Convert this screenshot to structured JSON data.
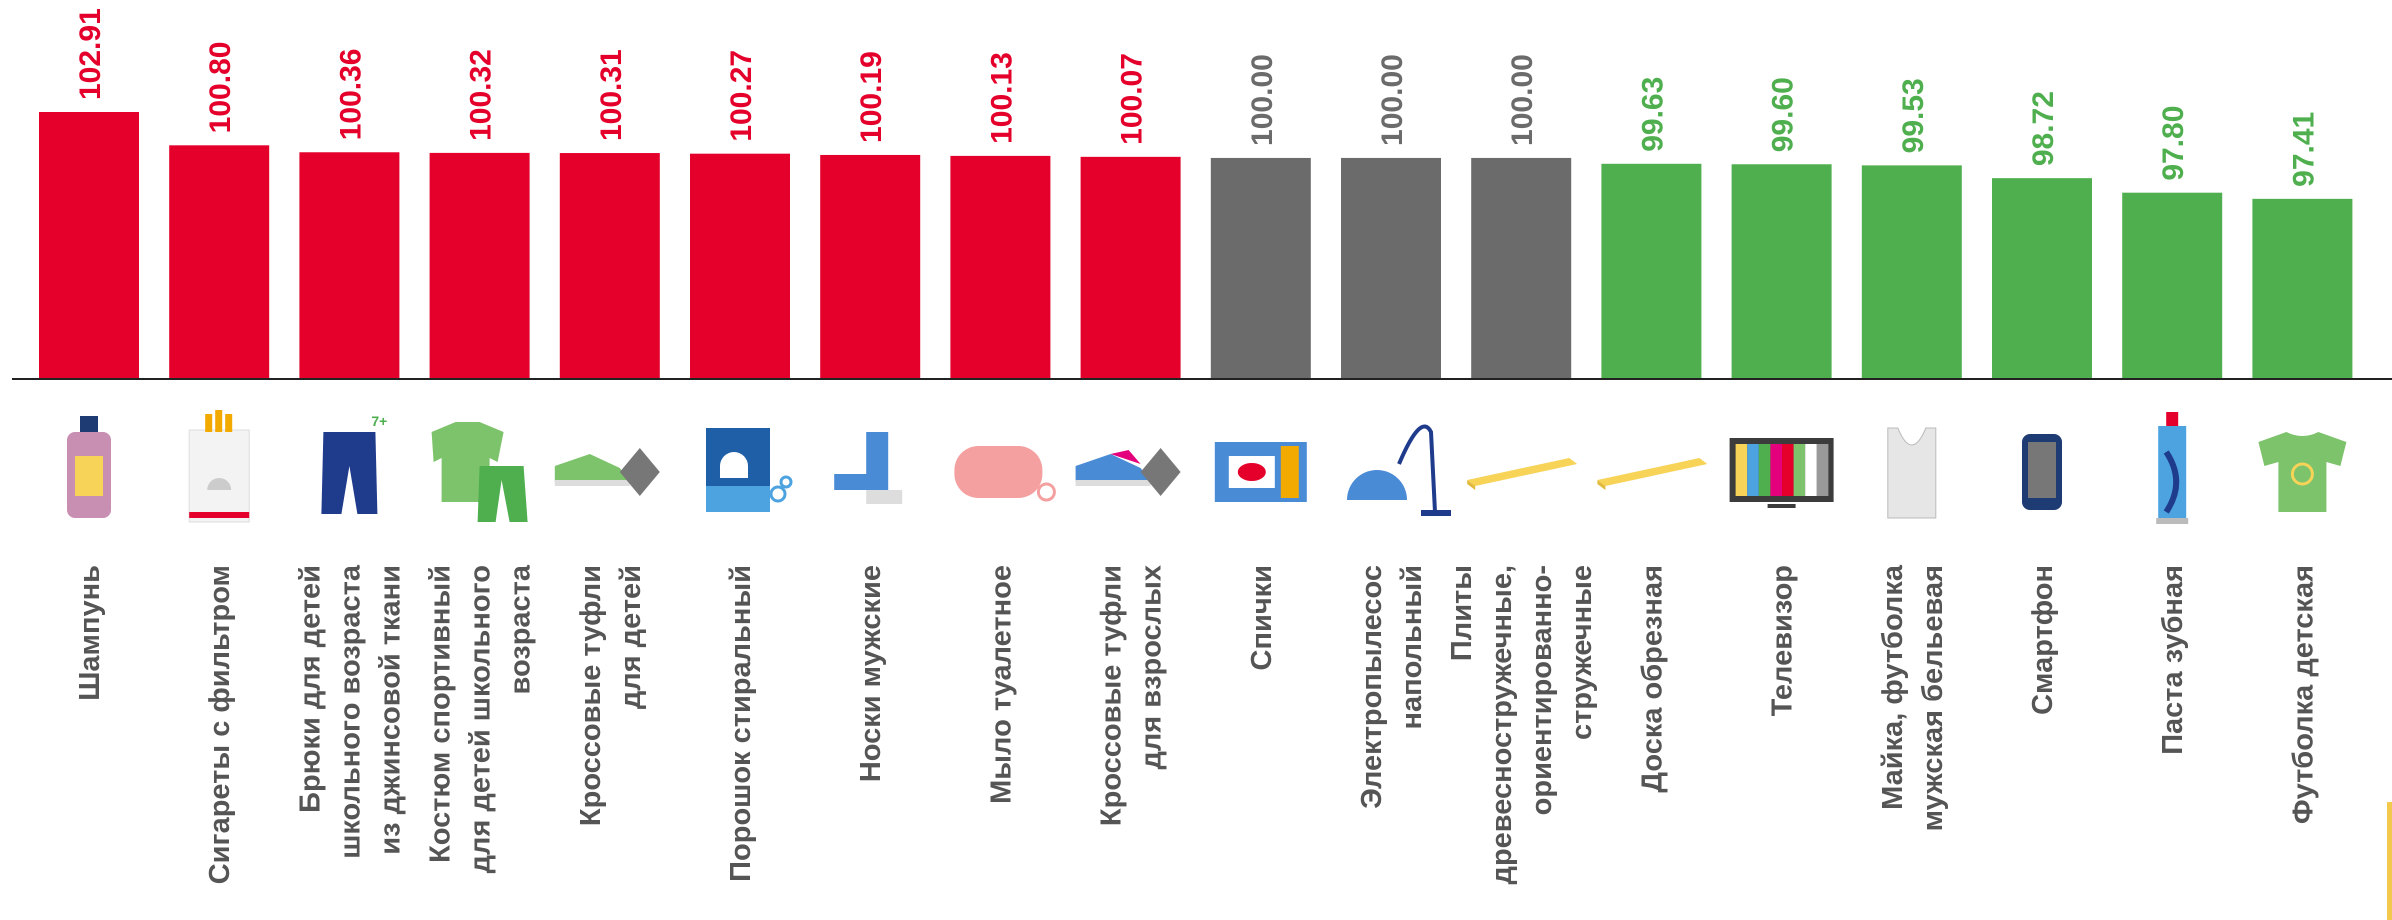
{
  "colors": {
    "above": "#E4002B",
    "equal": "#6B6B6B",
    "below": "#4FAF4F",
    "axis": "#222222",
    "label": "#555555",
    "corner": "#F2C94C"
  },
  "chart_data": {
    "type": "bar",
    "title": "",
    "xlabel": "",
    "ylabel": "",
    "categories": [
      "Шампунь",
      "Сигареты с фильтром",
      "Брюки для детей школьного возраста из джинсовой ткани",
      "Костюм спортивный для детей школьного возраста",
      "Кроссовые туфли для детей",
      "Порошок стиральный",
      "Носки мужские",
      "Мыло туалетное",
      "Кроссовые туфли для взрослых",
      "Спички",
      "Электропылесос напольный",
      "Плиты древесностружечные, ориентированно-стружечные",
      "Доска обрезная",
      "Телевизор",
      "Майка, футболка мужская бельевая",
      "Смартфон",
      "Паста зубная",
      "Футболка детская"
    ],
    "category_lines": [
      [
        "Шампунь"
      ],
      [
        "Сигареты с фильтром"
      ],
      [
        "Брюки для детей",
        "школьного возраста",
        "из джинсовой ткани"
      ],
      [
        "Костюм спортивный",
        "для детей школьного",
        "возраста"
      ],
      [
        "Кроссовые туфли",
        "для детей"
      ],
      [
        "Порошок стиральный"
      ],
      [
        "Носки мужские"
      ],
      [
        "Мыло туалетное"
      ],
      [
        "Кроссовые туфли",
        "для взрослых"
      ],
      [
        "Спички"
      ],
      [
        "Электропылесос",
        "напольный"
      ],
      [
        "Плиты",
        "древесностружечные,",
        "ориентированно-",
        "стружечные"
      ],
      [
        "Доска обрезная"
      ],
      [
        "Телевизор"
      ],
      [
        "Майка, футболка",
        "мужская бельевая"
      ],
      [
        "Смартфон"
      ],
      [
        "Паста зубная"
      ],
      [
        "Футболка детская"
      ]
    ],
    "values": [
      102.91,
      100.8,
      100.36,
      100.32,
      100.31,
      100.27,
      100.19,
      100.13,
      100.07,
      100.0,
      100.0,
      100.0,
      99.63,
      99.6,
      99.53,
      98.72,
      97.8,
      97.41
    ],
    "value_labels": [
      "102.91",
      "100.80",
      "100.36",
      "100.32",
      "100.31",
      "100.27",
      "100.19",
      "100.13",
      "100.07",
      "100.00",
      "100.00",
      "100.00",
      "99.63",
      "99.60",
      "99.53",
      "98.72",
      "97.80",
      "97.41"
    ],
    "icons": [
      "shampoo-icon",
      "cigarettes-icon",
      "jeans-icon",
      "tracksuit-icon",
      "sneakers-kids-icon",
      "washing-powder-icon",
      "sock-icon",
      "soap-icon",
      "sneakers-adult-icon",
      "matches-icon",
      "vacuum-cleaner-icon",
      "osb-board-icon",
      "plank-icon",
      "tv-icon",
      "tank-top-icon",
      "smartphone-icon",
      "toothpaste-icon",
      "kids-tshirt-icon"
    ],
    "ylim": [
      86,
      103.5
    ],
    "grid": false,
    "legend": "none"
  }
}
